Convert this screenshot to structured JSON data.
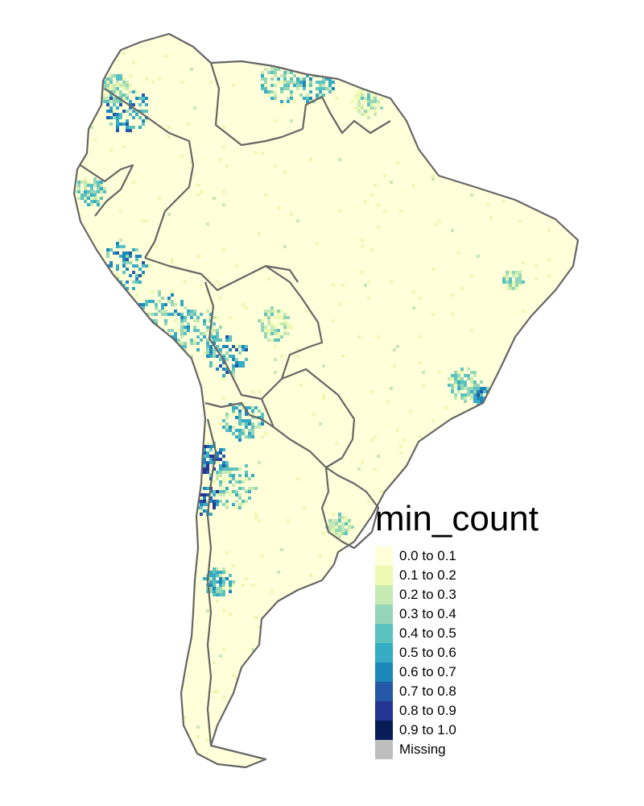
{
  "legend": {
    "title": "min_count",
    "items": [
      {
        "label": "0.0 to 0.1",
        "color": "#FFFFD9"
      },
      {
        "label": "0.1 to 0.2",
        "color": "#EDF8B1"
      },
      {
        "label": "0.2 to 0.3",
        "color": "#C7E9B4"
      },
      {
        "label": "0.3 to 0.4",
        "color": "#95D6B8"
      },
      {
        "label": "0.4 to 0.5",
        "color": "#5CC2C0"
      },
      {
        "label": "0.5 to 0.6",
        "color": "#35ABC4"
      },
      {
        "label": "0.6 to 0.7",
        "color": "#1D87BC"
      },
      {
        "label": "0.7 to 0.8",
        "color": "#2458A6"
      },
      {
        "label": "0.8 to 0.9",
        "color": "#243594"
      },
      {
        "label": "0.9 to 1.0",
        "color": "#081D58"
      },
      {
        "label": "Missing",
        "color": "#BEBEBE"
      }
    ]
  },
  "map": {
    "region": "South America",
    "land_color": "#FFFFD9",
    "border_color": "#666666"
  }
}
